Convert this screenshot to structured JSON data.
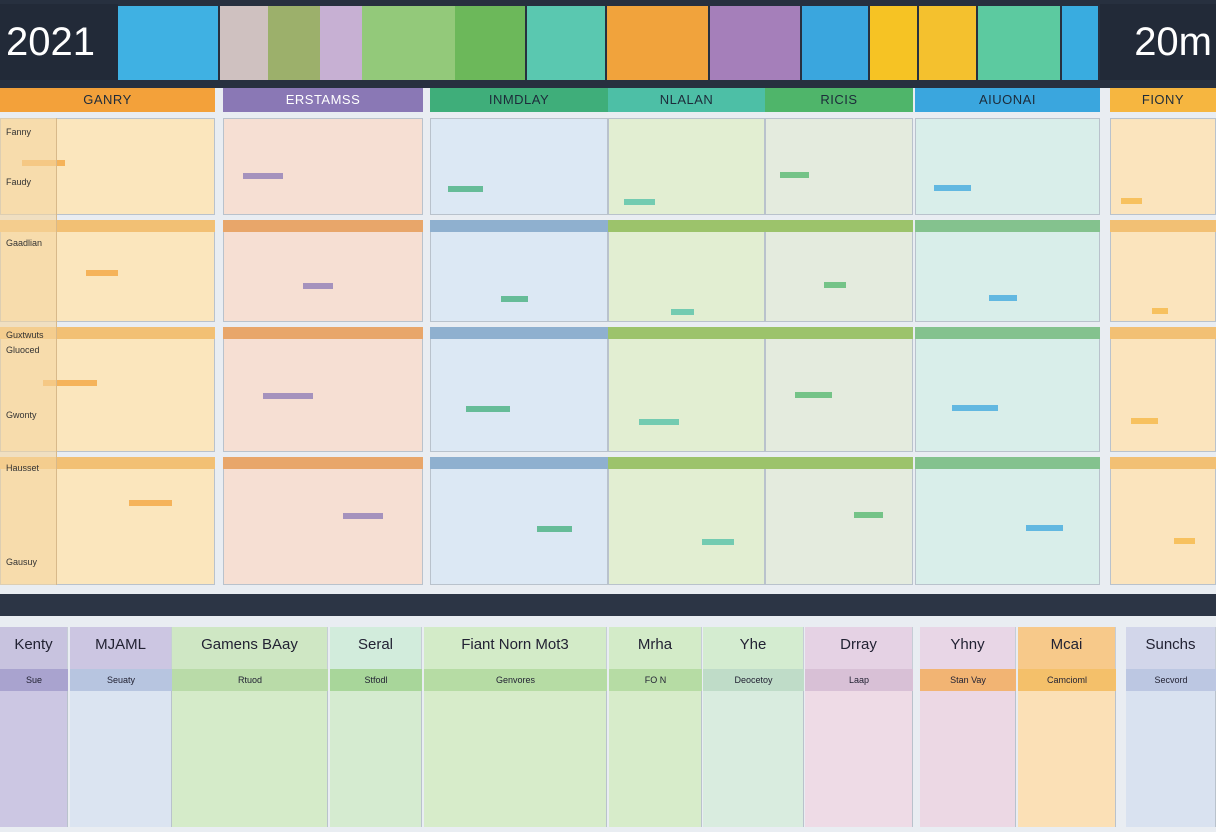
{
  "header": {
    "year": "2021",
    "right_label": "20m"
  },
  "sections": [
    "GANRY",
    "ERSTAMSS",
    "INMDLAY",
    "NLALAN",
    "RICIS",
    "AIUONAI",
    "FIONY"
  ],
  "row_labels": [
    "Fanny",
    "Faudy",
    "Gaadlian",
    "Guxtwuts",
    "Gluoced",
    "Gwonty",
    "Hausset",
    "Gausuy"
  ],
  "bottom": {
    "columns": [
      {
        "title": "Kenty",
        "subtitle": "Sue"
      },
      {
        "title": "MJAML",
        "subtitle": "Seuaty"
      },
      {
        "title": "Gamens BAay",
        "subtitle": "Rtuod"
      },
      {
        "title": "Seral",
        "subtitle": "Stfodl"
      },
      {
        "title": "Fiant Norn  Mot3",
        "subtitle": "Genvores"
      },
      {
        "title": "Mrha",
        "subtitle": "FO N"
      },
      {
        "title": "Yhe",
        "subtitle": "Deocetoy"
      },
      {
        "title": "Drray",
        "subtitle": "Laap"
      },
      {
        "title": "Yhny",
        "subtitle": "Stan Vay"
      },
      {
        "title": "Mcai",
        "subtitle": "Camcioml"
      },
      {
        "title": "Sunchs",
        "subtitle": "Secvord"
      }
    ]
  }
}
